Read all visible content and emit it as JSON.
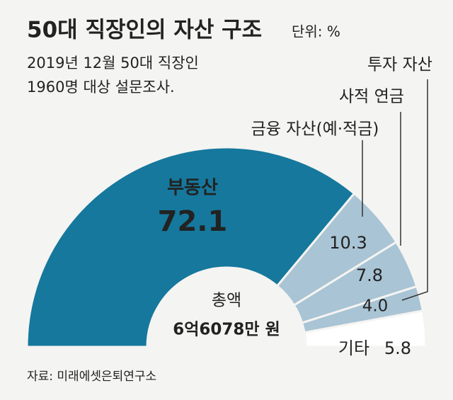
{
  "chart_data": {
    "type": "semi-donut",
    "title": "50대 직장인의 자산 구조",
    "unit": "단위: %",
    "subtitle": [
      "2019년 12월 50대 직장인",
      "1960명 대상 설문조사."
    ],
    "categories": [
      "부동산",
      "금융 자산(예·적금)",
      "사적 연금",
      "투자 자산",
      "기타"
    ],
    "values": [
      72.1,
      10.3,
      7.8,
      4.0,
      5.8
    ],
    "value_labels": [
      "72.1",
      "10.3",
      "7.8",
      "4.0",
      "5.8"
    ],
    "colors": [
      "#15789c",
      "#a9c4d4",
      "#a9c4d4",
      "#a9c4d4",
      "#ffffff"
    ],
    "center_label": [
      "총액",
      "6억6078만 원"
    ],
    "source": "자료: 미래에셋은퇴연구소"
  }
}
